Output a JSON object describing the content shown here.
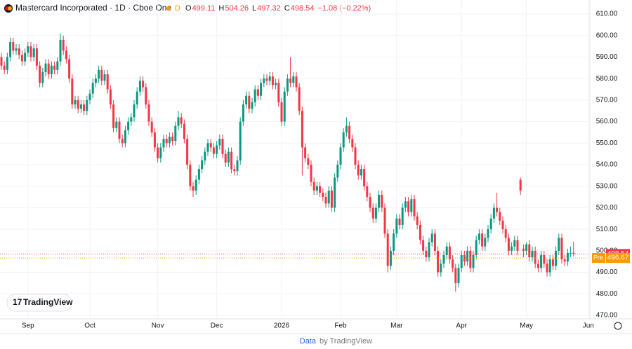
{
  "header": {
    "symbol": "Mastercard Incorporated · 1D · Cboe One",
    "status": "D",
    "open_label": "O",
    "open": 499.11,
    "high_label": "H",
    "high": 504.26,
    "low_label": "L",
    "low": 497.32,
    "close_label": "C",
    "close": 498.54,
    "change": "−1.08 (−0.22%)"
  },
  "logo": "TradingView",
  "footer": {
    "link": "Data",
    "text": "by TradingView"
  },
  "chart_data": {
    "type": "candlestick",
    "up_color": "#089981",
    "down_color": "#f23645",
    "ylim": [
      470,
      610
    ],
    "yticks": [
      {
        "value": 470,
        "label": "470.00"
      },
      {
        "value": 480,
        "label": "480.00"
      },
      {
        "value": 490,
        "label": "490.00"
      },
      {
        "value": 500,
        "label": "500.00"
      },
      {
        "value": 510,
        "label": "510.00"
      },
      {
        "value": 520,
        "label": "520.00"
      },
      {
        "value": 530,
        "label": "530.00"
      },
      {
        "value": 540,
        "label": "540.00"
      },
      {
        "value": 550,
        "label": "550.00"
      },
      {
        "value": 560,
        "label": "560.00"
      },
      {
        "value": 570,
        "label": "570.00"
      },
      {
        "value": 580,
        "label": "580.00"
      },
      {
        "value": 590,
        "label": "590.00"
      },
      {
        "value": 600,
        "label": "600.00"
      },
      {
        "value": 610,
        "label": "610.00"
      }
    ],
    "xlim": [
      0,
      199
    ],
    "xticks": [
      {
        "value": 9,
        "label": "Sep"
      },
      {
        "value": 30,
        "label": "Oct"
      },
      {
        "value": 53,
        "label": "Nov"
      },
      {
        "value": 73,
        "label": "Dec"
      },
      {
        "value": 95,
        "label": "2026"
      },
      {
        "value": 115,
        "label": "Feb"
      },
      {
        "value": 134,
        "label": "Mar"
      },
      {
        "value": 156,
        "label": "Apr"
      },
      {
        "value": 178,
        "label": "May"
      },
      {
        "value": 199,
        "label": "Jun"
      }
    ],
    "last_price": {
      "value": 498.54,
      "color": "#f23645"
    },
    "pre_price": {
      "label": "Pre",
      "value": 496.67,
      "color": "#ff9800"
    },
    "candles": [
      [
        590,
        592,
        584,
        586
      ],
      [
        586,
        588,
        582,
        584
      ],
      [
        584,
        592,
        582,
        590
      ],
      [
        590,
        599,
        588,
        597
      ],
      [
        597,
        599,
        591,
        593
      ],
      [
        593,
        596,
        591,
        594
      ],
      [
        594,
        596,
        589,
        591
      ],
      [
        591,
        593,
        586,
        588
      ],
      [
        588,
        594,
        586,
        592
      ],
      [
        592,
        597,
        590,
        595
      ],
      [
        595,
        597,
        588,
        590
      ],
      [
        590,
        596,
        588,
        594
      ],
      [
        594,
        596,
        584,
        586
      ],
      [
        586,
        588,
        576,
        578
      ],
      [
        578,
        585,
        576,
        583
      ],
      [
        583,
        589,
        581,
        587
      ],
      [
        587,
        589,
        580,
        582
      ],
      [
        582,
        588,
        580,
        586
      ],
      [
        586,
        588,
        582,
        584
      ],
      [
        584,
        590,
        582,
        588
      ],
      [
        588,
        601,
        586,
        598
      ],
      [
        598,
        600,
        591,
        593
      ],
      [
        593,
        595,
        587,
        589
      ],
      [
        589,
        591,
        578,
        580
      ],
      [
        580,
        582,
        566,
        568
      ],
      [
        568,
        572,
        566,
        570
      ],
      [
        570,
        572,
        564,
        566
      ],
      [
        566,
        570,
        564,
        568
      ],
      [
        568,
        570,
        563,
        565
      ],
      [
        565,
        572,
        563,
        570
      ],
      [
        570,
        575,
        568,
        573
      ],
      [
        573,
        580,
        571,
        578
      ],
      [
        578,
        582,
        576,
        580
      ],
      [
        580,
        586,
        578,
        584
      ],
      [
        584,
        586,
        577,
        579
      ],
      [
        579,
        584,
        577,
        582
      ],
      [
        582,
        584,
        573,
        575
      ],
      [
        575,
        577,
        566,
        568
      ],
      [
        568,
        570,
        555,
        557
      ],
      [
        557,
        562,
        555,
        560
      ],
      [
        560,
        562,
        550,
        552
      ],
      [
        552,
        554,
        548,
        550
      ],
      [
        550,
        558,
        548,
        556
      ],
      [
        556,
        562,
        554,
        560
      ],
      [
        560,
        564,
        558,
        562
      ],
      [
        562,
        570,
        560,
        568
      ],
      [
        568,
        576,
        566,
        574
      ],
      [
        574,
        581,
        572,
        579
      ],
      [
        579,
        581,
        574,
        576
      ],
      [
        576,
        578,
        566,
        568
      ],
      [
        568,
        570,
        558,
        560
      ],
      [
        560,
        562,
        553,
        555
      ],
      [
        555,
        557,
        546,
        548
      ],
      [
        548,
        550,
        541,
        543
      ],
      [
        543,
        550,
        541,
        548
      ],
      [
        548,
        554,
        546,
        552
      ],
      [
        552,
        554,
        548,
        550
      ],
      [
        550,
        555,
        548,
        553
      ],
      [
        553,
        555,
        549,
        551
      ],
      [
        551,
        560,
        549,
        558
      ],
      [
        558,
        565,
        556,
        562
      ],
      [
        562,
        564,
        557,
        559
      ],
      [
        559,
        561,
        550,
        552
      ],
      [
        552,
        554,
        538,
        540
      ],
      [
        540,
        542,
        528,
        530
      ],
      [
        530,
        532,
        525,
        528
      ],
      [
        528,
        535,
        526,
        533
      ],
      [
        533,
        540,
        531,
        538
      ],
      [
        538,
        544,
        536,
        542
      ],
      [
        542,
        548,
        540,
        546
      ],
      [
        546,
        552,
        544,
        550
      ],
      [
        550,
        552,
        546,
        548
      ],
      [
        548,
        550,
        543,
        545
      ],
      [
        545,
        551,
        543,
        549
      ],
      [
        549,
        554,
        547,
        552
      ],
      [
        552,
        554,
        543,
        545
      ],
      [
        545,
        547,
        539,
        541
      ],
      [
        541,
        548,
        539,
        546
      ],
      [
        546,
        548,
        536,
        538
      ],
      [
        538,
        540,
        535,
        537
      ],
      [
        537,
        544,
        535,
        542
      ],
      [
        542,
        562,
        540,
        560
      ],
      [
        560,
        570,
        558,
        568
      ],
      [
        568,
        574,
        566,
        572
      ],
      [
        572,
        574,
        564,
        566
      ],
      [
        566,
        571,
        564,
        569
      ],
      [
        569,
        577,
        567,
        575
      ],
      [
        575,
        577,
        570,
        572
      ],
      [
        572,
        580,
        570,
        578
      ],
      [
        578,
        582,
        576,
        580
      ],
      [
        580,
        582,
        577,
        579
      ],
      [
        579,
        583,
        577,
        581
      ],
      [
        581,
        583,
        575,
        577
      ],
      [
        577,
        580,
        575,
        578
      ],
      [
        578,
        580,
        567,
        569
      ],
      [
        569,
        571,
        558,
        560
      ],
      [
        560,
        576,
        558,
        574
      ],
      [
        574,
        582,
        572,
        580
      ],
      [
        580,
        590,
        576,
        578
      ],
      [
        578,
        583,
        576,
        581
      ],
      [
        581,
        583,
        574,
        576
      ],
      [
        576,
        578,
        563,
        565
      ],
      [
        565,
        567,
        535,
        548
      ],
      [
        548,
        550,
        541,
        543
      ],
      [
        543,
        545,
        538,
        540
      ],
      [
        540,
        542,
        530,
        532
      ],
      [
        532,
        534,
        526,
        528
      ],
      [
        528,
        532,
        526,
        530
      ],
      [
        530,
        532,
        525,
        527
      ],
      [
        527,
        529,
        523,
        525
      ],
      [
        525,
        527,
        520,
        522
      ],
      [
        522,
        530,
        520,
        528
      ],
      [
        528,
        530,
        518,
        520
      ],
      [
        520,
        536,
        518,
        534
      ],
      [
        534,
        542,
        532,
        540
      ],
      [
        540,
        550,
        538,
        548
      ],
      [
        548,
        557,
        546,
        555
      ],
      [
        555,
        562,
        553,
        558
      ],
      [
        558,
        560,
        550,
        552
      ],
      [
        552,
        554,
        546,
        548
      ],
      [
        548,
        550,
        538,
        540
      ],
      [
        540,
        542,
        533,
        535
      ],
      [
        535,
        540,
        533,
        538
      ],
      [
        538,
        540,
        528,
        530
      ],
      [
        530,
        532,
        523,
        525
      ],
      [
        525,
        527,
        518,
        520
      ],
      [
        520,
        522,
        513,
        515
      ],
      [
        515,
        522,
        513,
        520
      ],
      [
        520,
        528,
        518,
        526
      ],
      [
        526,
        528,
        518,
        520
      ],
      [
        520,
        522,
        506,
        508
      ],
      [
        508,
        510,
        490,
        493
      ],
      [
        493,
        502,
        491,
        500
      ],
      [
        500,
        510,
        498,
        508
      ],
      [
        508,
        517,
        506,
        515
      ],
      [
        515,
        517,
        510,
        512
      ],
      [
        512,
        522,
        510,
        520
      ],
      [
        520,
        525,
        518,
        523
      ],
      [
        523,
        525,
        516,
        518
      ],
      [
        518,
        526,
        516,
        524
      ],
      [
        524,
        526,
        514,
        516
      ],
      [
        516,
        518,
        510,
        512
      ],
      [
        512,
        514,
        503,
        505
      ],
      [
        505,
        507,
        498,
        500
      ],
      [
        500,
        502,
        495,
        497
      ],
      [
        497,
        506,
        495,
        504
      ],
      [
        504,
        510,
        502,
        508
      ],
      [
        508,
        510,
        498,
        500
      ],
      [
        500,
        502,
        488,
        490
      ],
      [
        490,
        496,
        488,
        494
      ],
      [
        494,
        500,
        492,
        498
      ],
      [
        498,
        504,
        496,
        502
      ],
      [
        502,
        504,
        494,
        496
      ],
      [
        496,
        498,
        490,
        492
      ],
      [
        492,
        494,
        481,
        485
      ],
      [
        485,
        494,
        483,
        492
      ],
      [
        492,
        500,
        490,
        498
      ],
      [
        498,
        500,
        493,
        495
      ],
      [
        495,
        502,
        493,
        500
      ],
      [
        500,
        502,
        490,
        492
      ],
      [
        492,
        500,
        490,
        498
      ],
      [
        498,
        507,
        496,
        505
      ],
      [
        505,
        510,
        503,
        508
      ],
      [
        508,
        510,
        500,
        502
      ],
      [
        502,
        508,
        500,
        506
      ],
      [
        506,
        512,
        504,
        510
      ],
      [
        510,
        517,
        508,
        515
      ],
      [
        515,
        522,
        513,
        520
      ],
      [
        520,
        527,
        516,
        518
      ],
      [
        518,
        520,
        512,
        514
      ],
      [
        514,
        516,
        508,
        510
      ],
      [
        510,
        512,
        504,
        506
      ],
      [
        506,
        508,
        498,
        500
      ],
      [
        500,
        504,
        498,
        502
      ],
      [
        502,
        507,
        500,
        505
      ],
      [
        505,
        507,
        498,
        500
      ],
      [
        533,
        534,
        526,
        528
      ],
      [
        501,
        503,
        497,
        500
      ],
      [
        500,
        504,
        498,
        503
      ],
      [
        503,
        505,
        495,
        497
      ],
      [
        497,
        502,
        495,
        500
      ],
      [
        500,
        502,
        492,
        494
      ],
      [
        494,
        496,
        490,
        492
      ],
      [
        492,
        500,
        490,
        498
      ],
      [
        498,
        500,
        492,
        494
      ],
      [
        494,
        496,
        488,
        490
      ],
      [
        490,
        498,
        488,
        496
      ],
      [
        496,
        498,
        491,
        493
      ],
      [
        493,
        502,
        491,
        500
      ],
      [
        500,
        508,
        498,
        506
      ],
      [
        506,
        508,
        494,
        496
      ],
      [
        496,
        498,
        493,
        495
      ],
      [
        495,
        501,
        493,
        499
      ],
      [
        499,
        502,
        497,
        499
      ],
      [
        499.11,
        504.26,
        497.32,
        498.54
      ]
    ]
  }
}
